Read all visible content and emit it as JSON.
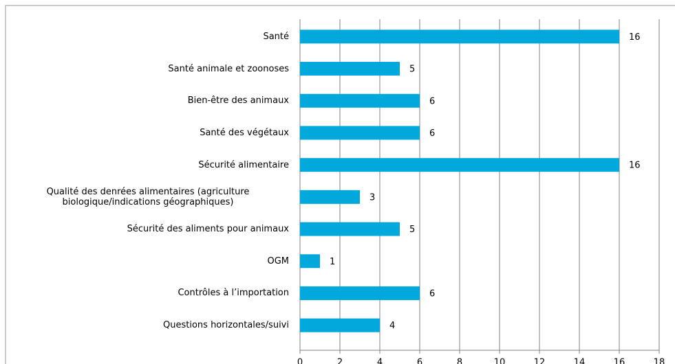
{
  "chart_data": {
    "type": "bar",
    "orientation": "horizontal",
    "categories": [
      "Santé",
      "Santé animale et zoonoses",
      "Bien-être des animaux",
      "Santé des végétaux",
      "Sécurité alimentaire",
      "Qualité des denrées alimentaires (agriculture biologique/indications géographiques)",
      "Sécurité des aliments pour animaux",
      "OGM",
      "Contrôles à l’importation",
      "Questions horizontales/suivi"
    ],
    "values": [
      16,
      5,
      6,
      6,
      16,
      3,
      5,
      1,
      6,
      4
    ],
    "color": "#00a8dc",
    "xlim": [
      0,
      18
    ],
    "xticks": [
      0,
      2,
      4,
      6,
      8,
      10,
      12,
      14,
      16,
      18
    ],
    "grid": true
  }
}
